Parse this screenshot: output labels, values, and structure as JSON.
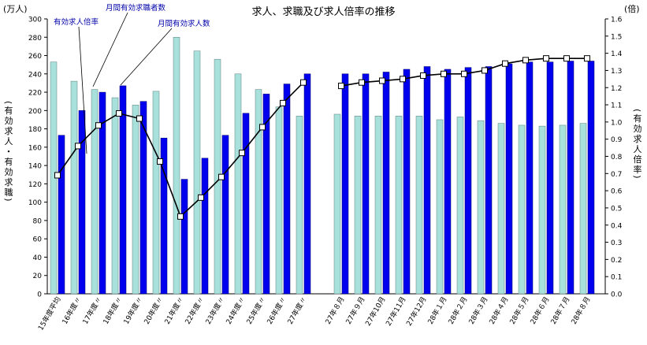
{
  "chart_data": {
    "type": "bar",
    "title": "求人、求職及び求人倍率の推移",
    "left_unit": "(万人)",
    "right_unit": "(倍)",
    "left_axis_label": "(有効求人・有効求職)",
    "right_axis_label": "(有効求人倍率)",
    "ylim_left": [
      0,
      300
    ],
    "ylim_right": [
      0,
      1.6
    ],
    "left_ticks": [
      "0",
      "20",
      "40",
      "60",
      "80",
      "100",
      "120",
      "140",
      "160",
      "180",
      "200",
      "220",
      "240",
      "260",
      "280",
      "300"
    ],
    "right_ticks": [
      "0.0",
      "0.1",
      "0.2",
      "0.3",
      "0.4",
      "0.5",
      "0.6",
      "0.7",
      "0.8",
      "0.9",
      "1.0",
      "1.1",
      "1.2",
      "1.3",
      "1.4",
      "1.5",
      "1.6"
    ],
    "grid": false,
    "annotations": [
      "有効求人倍率",
      "月間有効求職者数",
      "月間有効求人数"
    ],
    "categories_group1": [
      "15年度平均",
      "16年度〃",
      "17年度〃",
      "18年度〃",
      "19年度〃",
      "20年度〃",
      "21年度〃",
      "22年度〃",
      "23年度〃",
      "24年度〃",
      "25年度〃",
      "26年度〃",
      "27年度〃"
    ],
    "categories_group2": [
      "27年８月",
      "27年９月",
      "27年10月",
      "27年11月",
      "27年12月",
      "28年１月",
      "28年２月",
      "28年３月",
      "28年４月",
      "28年５月",
      "28年６月",
      "28年７月",
      "28年８月"
    ],
    "series": [
      {
        "name": "月間有効求職者数",
        "color": "#a8e0dc",
        "values_group1": [
          253,
          232,
          223,
          214,
          206,
          221,
          280,
          265,
          256,
          240,
          223,
          204,
          194
        ],
        "values_group2": [
          196,
          194,
          194,
          194,
          194,
          190,
          193,
          189,
          186,
          184,
          183,
          184,
          186
        ]
      },
      {
        "name": "月間有効求人数",
        "color": "#0000ee",
        "values_group1": [
          173,
          200,
          220,
          227,
          210,
          170,
          125,
          148,
          173,
          197,
          218,
          229,
          240
        ],
        "values_group2": [
          240,
          240,
          242,
          245,
          248,
          245,
          247,
          248,
          251,
          253,
          253,
          254,
          254
        ]
      },
      {
        "name": "有効求人倍率",
        "axis": "right",
        "color": "#000000",
        "values_group1": [
          0.69,
          0.86,
          0.98,
          1.05,
          1.02,
          0.77,
          0.45,
          0.56,
          0.68,
          0.82,
          0.97,
          1.11,
          1.23
        ],
        "values_group2": [
          1.21,
          1.23,
          1.24,
          1.25,
          1.27,
          1.28,
          1.28,
          1.3,
          1.34,
          1.36,
          1.37,
          1.37,
          1.37
        ]
      }
    ]
  }
}
